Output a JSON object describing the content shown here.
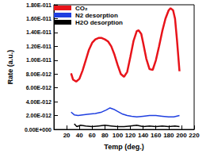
{
  "chart_data": {
    "type": "line",
    "xlabel": "Temp (deg.)",
    "ylabel": "Rate (a.u.)",
    "xlim": [
      0,
      220
    ],
    "xticks": [
      20,
      40,
      60,
      80,
      100,
      120,
      140,
      160,
      180,
      200,
      220
    ],
    "ylim": [
      0,
      1.8e-11
    ],
    "yticks": [
      {
        "value": 0,
        "label": "0.00E+000"
      },
      {
        "value": 2e-12,
        "label": "2.00E-012"
      },
      {
        "value": 4e-12,
        "label": "4.00E-012"
      },
      {
        "value": 6e-12,
        "label": "6.00E-012"
      },
      {
        "value": 8e-12,
        "label": "8.00E-012"
      },
      {
        "value": 1e-11,
        "label": "1.00E-011"
      },
      {
        "value": 1.2e-11,
        "label": "1.20E-011"
      },
      {
        "value": 1.4e-11,
        "label": "1.40E-011"
      },
      {
        "value": 1.6e-11,
        "label": "1.60E-011"
      },
      {
        "value": 1.8e-11,
        "label": "1.80E-011"
      }
    ],
    "grid": false,
    "legend": "upper left",
    "series": [
      {
        "name": "CO₂",
        "color": "#e8141b",
        "x": [
          27,
          30,
          35,
          40,
          45,
          50,
          55,
          60,
          65,
          70,
          75,
          80,
          85,
          90,
          95,
          100,
          105,
          110,
          115,
          120,
          125,
          130,
          133,
          137,
          140,
          145,
          150,
          155,
          160,
          165,
          170,
          175,
          180,
          183,
          187,
          190,
          193,
          197
        ],
        "values": [
          8.1e-12,
          7.2e-12,
          6.9e-12,
          7.3e-12,
          8.5e-12,
          1e-11,
          1.15e-11,
          1.25e-11,
          1.3e-11,
          1.32e-11,
          1.32e-11,
          1.3e-11,
          1.27e-11,
          1.2e-11,
          1.08e-11,
          9.3e-12,
          8e-12,
          7.6e-12,
          8.3e-12,
          1.05e-11,
          1.28e-11,
          1.42e-11,
          1.43e-11,
          1.38e-11,
          1.25e-11,
          1.02e-11,
          8.7e-12,
          8.6e-12,
          1e-11,
          1.2e-11,
          1.42e-11,
          1.6e-11,
          1.72e-11,
          1.75e-11,
          1.72e-11,
          1.6e-11,
          1.3e-11,
          8.4e-12
        ]
      },
      {
        "name": "N2 desorption",
        "color": "#1f3fe0",
        "x": [
          27,
          32,
          38,
          45,
          55,
          65,
          75,
          82,
          88,
          94,
          100,
          108,
          115,
          122,
          130,
          140,
          150,
          160,
          170,
          180,
          188,
          197
        ],
        "values": [
          2.5e-12,
          2.1e-12,
          2e-12,
          2.1e-12,
          2.2e-12,
          2.3e-12,
          2.5e-12,
          2.8e-12,
          3.1e-12,
          2.9e-12,
          2.6e-12,
          2.2e-12,
          2e-12,
          1.9e-12,
          1.8e-12,
          1.9e-12,
          2e-12,
          2e-12,
          1.9e-12,
          1.8e-12,
          1.8e-12,
          2e-12
        ]
      },
      {
        "name": "H2O desorption",
        "color": "#000000",
        "x": [
          32,
          36,
          42,
          50,
          60,
          70,
          80,
          90,
          100,
          110,
          120,
          130,
          140,
          150,
          160,
          170,
          180,
          190,
          197
        ],
        "values": [
          8e-13,
          4e-13,
          6e-13,
          5e-13,
          4e-13,
          5e-13,
          6e-13,
          5e-13,
          4e-13,
          4e-13,
          5e-13,
          6e-13,
          4e-13,
          5e-13,
          4e-13,
          5e-13,
          4e-13,
          5e-13,
          4e-13
        ]
      }
    ]
  }
}
